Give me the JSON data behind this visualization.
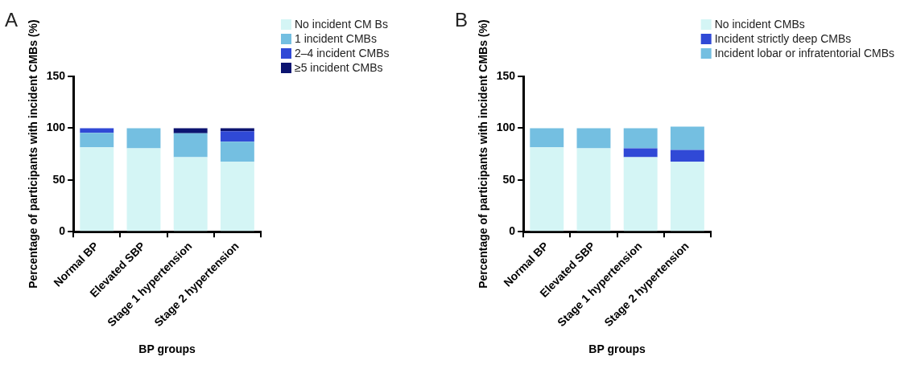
{
  "chart_data": [
    {
      "type": "bar",
      "title": "A",
      "xlabel": "BP groups",
      "ylabel": "Percentage of participants with incident CMBs (%)",
      "categories": [
        "Normal BP",
        "Elevated SBP",
        "Stage 1 hypertension",
        "Stage 2 hypertension"
      ],
      "stacked": true,
      "ylim": [
        0,
        150
      ],
      "yticks": [
        0,
        50,
        100,
        150
      ],
      "grid": false,
      "legend": "top right",
      "series": [
        {
          "name": "No incident CM Bs",
          "color": "#d4f5f5",
          "values": [
            81.5,
            80.5,
            72,
            67.5
          ]
        },
        {
          "name": "1 incident CMBs",
          "color": "#74bfe1",
          "values": [
            14,
            19.5,
            23,
            19.5
          ]
        },
        {
          "name": "2–4 incident CMBs",
          "color": "#3049d6",
          "values": [
            4.5,
            0,
            0,
            10
          ]
        },
        {
          "name": "≥5 incident CMBs",
          "color": "#0c1470",
          "values": [
            0,
            0,
            5,
            3
          ]
        }
      ]
    },
    {
      "type": "bar",
      "title": "B",
      "xlabel": "BP groups",
      "ylabel": "Percentage of participants with incident CMBs (%)",
      "categories": [
        "Normal BP",
        "Elevated SBP",
        "Stage 1 hypertension",
        "Stage 2 hypertension"
      ],
      "stacked": true,
      "ylim": [
        0,
        150
      ],
      "yticks": [
        0,
        50,
        100,
        150
      ],
      "grid": false,
      "legend": "top right",
      "series": [
        {
          "name": "No incident CMBs",
          "color": "#d4f5f5",
          "values": [
            81.5,
            80.5,
            72,
            67.5
          ]
        },
        {
          "name": "Incident strictly deep CMBs",
          "color": "#3049d6",
          "values": [
            0,
            0,
            8.5,
            11.5
          ]
        },
        {
          "name": "Incident lobar or infratentorial CMBs",
          "color": "#74bfe1",
          "values": [
            18.5,
            19.5,
            19.5,
            22.5
          ]
        }
      ]
    }
  ]
}
